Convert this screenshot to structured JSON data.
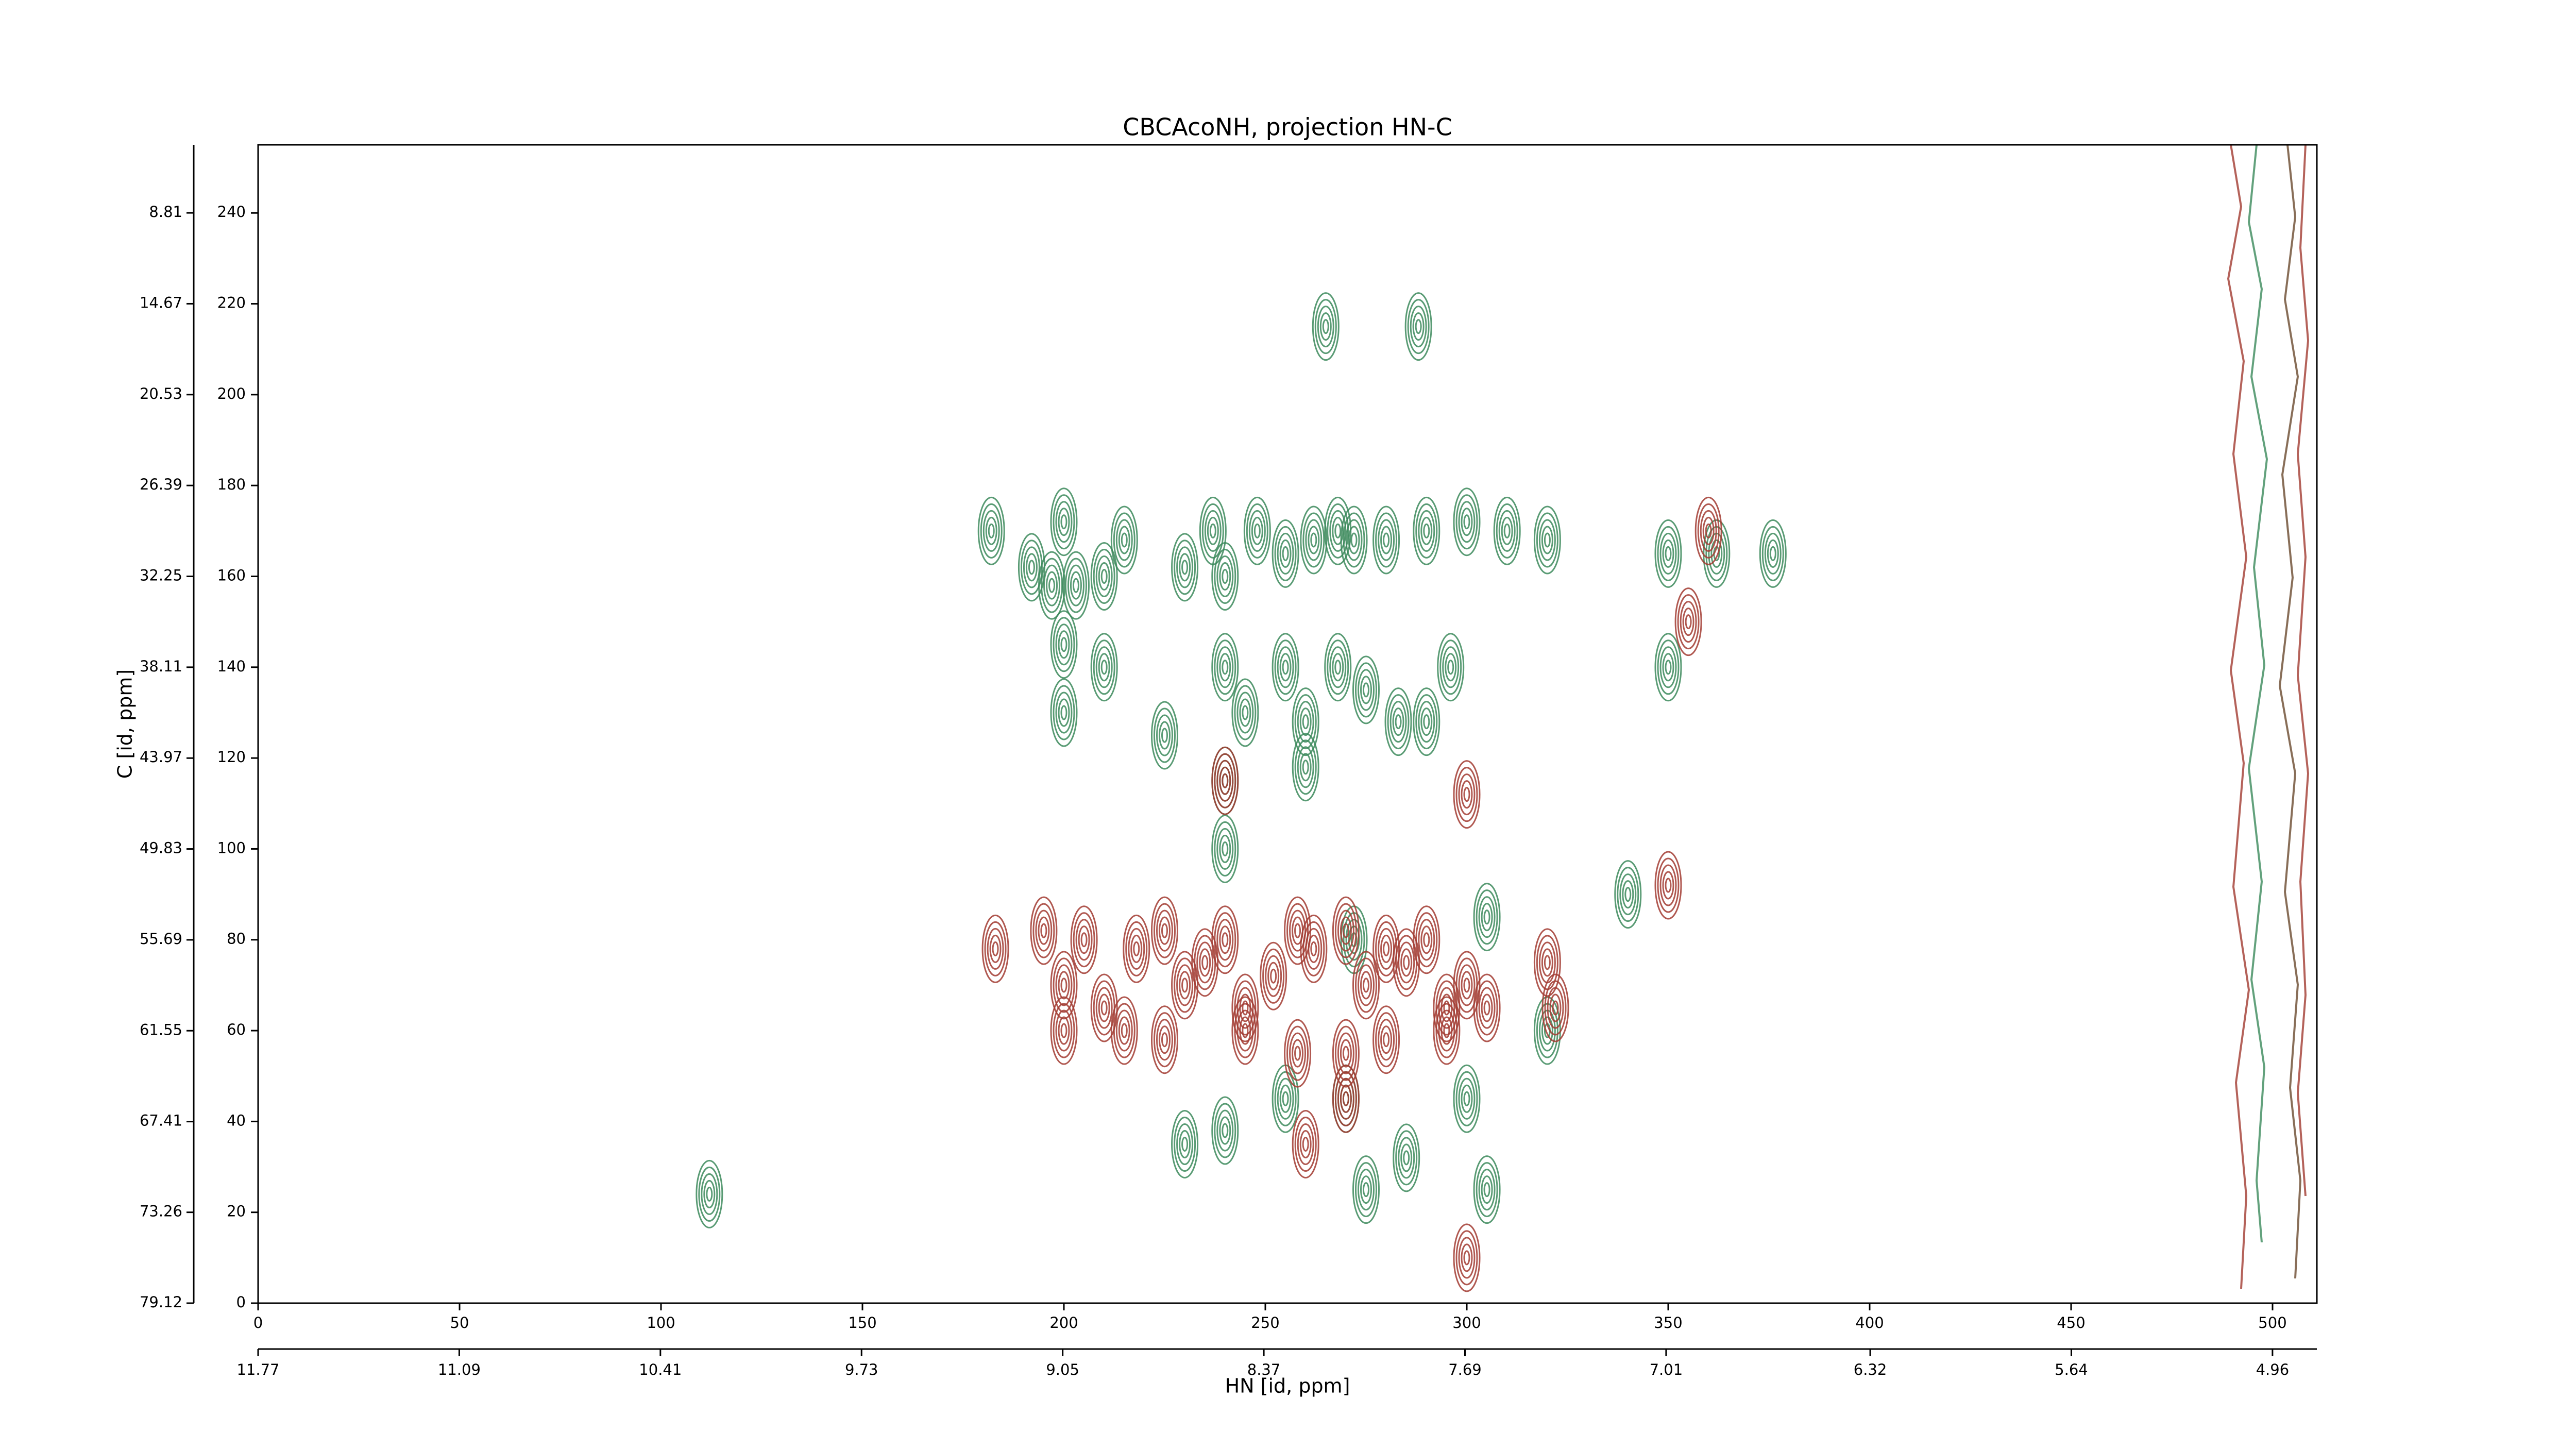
{
  "chart_data": {
    "type": "contour",
    "title": "CBCAcoNH, projection HN-C",
    "xlabel": "HN [id, ppm]",
    "ylabel": "C [id, ppm]",
    "xlim": [
      0,
      511
    ],
    "ylim": [
      0,
      255
    ],
    "xticks": [
      0,
      50,
      100,
      150,
      200,
      250,
      300,
      350,
      400,
      450,
      500
    ],
    "yticks": [
      0,
      20,
      40,
      60,
      80,
      100,
      120,
      140,
      160,
      180,
      200,
      220,
      240
    ],
    "x2lim": [
      11.77,
      4.81
    ],
    "x2ticks": [
      11.77,
      11.09,
      10.41,
      9.73,
      9.05,
      8.37,
      7.69,
      7.01,
      6.32,
      5.64,
      4.96
    ],
    "y2lim": [
      79.12,
      4.42
    ],
    "y2ticks": [
      79.12,
      73.26,
      67.41,
      61.55,
      55.69,
      49.83,
      43.97,
      38.11,
      32.25,
      26.39,
      20.53,
      14.67,
      8.81
    ],
    "series": [
      {
        "color": "#3c8a5c",
        "x": [
          182,
          200,
          192,
          197,
          203,
          210,
          215,
          230,
          237,
          240,
          248,
          255,
          262,
          268,
          272,
          280,
          290,
          300,
          310,
          320,
          200,
          210,
          200,
          225,
          240,
          245,
          255,
          260,
          268,
          275,
          283,
          290,
          296,
          240,
          260,
          265,
          288,
          350,
          350,
          362,
          376,
          240,
          255,
          270,
          300,
          320,
          230,
          240,
          285,
          112,
          275,
          305,
          272,
          305,
          340
        ],
        "y": [
          170,
          172,
          162,
          158,
          158,
          160,
          168,
          162,
          170,
          160,
          170,
          165,
          168,
          170,
          168,
          168,
          170,
          172,
          170,
          168,
          145,
          140,
          130,
          125,
          140,
          130,
          140,
          128,
          140,
          135,
          128,
          128,
          140,
          115,
          118,
          215,
          215,
          140,
          165,
          165,
          165,
          100,
          45,
          45,
          45,
          60,
          35,
          38,
          32,
          24,
          25,
          25,
          80,
          85,
          90
        ]
      },
      {
        "color": "#a23b31",
        "x": [
          183,
          195,
          200,
          205,
          210,
          218,
          225,
          230,
          235,
          240,
          245,
          252,
          258,
          262,
          270,
          275,
          280,
          285,
          290,
          295,
          300,
          305,
          320,
          322,
          200,
          215,
          225,
          245,
          258,
          270,
          280,
          295,
          300,
          240,
          270,
          260,
          300,
          350,
          360,
          355
        ],
        "y": [
          78,
          82,
          70,
          80,
          65,
          78,
          82,
          70,
          75,
          80,
          65,
          72,
          82,
          78,
          82,
          70,
          78,
          75,
          80,
          65,
          70,
          65,
          75,
          65,
          60,
          60,
          58,
          60,
          55,
          55,
          58,
          60,
          112,
          115,
          45,
          35,
          10,
          92,
          170,
          150
        ]
      }
    ]
  }
}
